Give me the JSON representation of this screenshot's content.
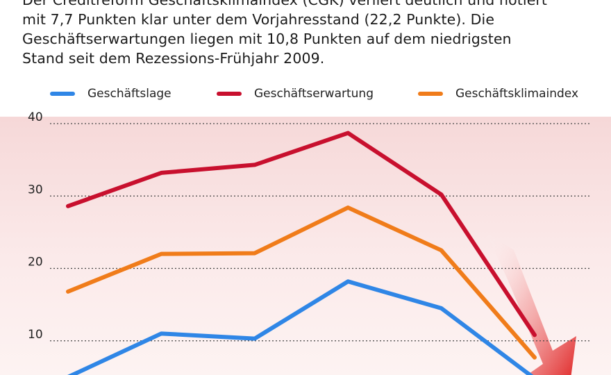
{
  "intro": {
    "lines": [
      "Der Creditreform Geschäftsklimaindex (CGK) verliert deutlich und notiert",
      "mit 7,7 Punkten klar unter dem Vorjahresstand (22,2 Punkte). Die",
      "Geschäftserwartungen liegen mit 10,8 Punkten auf dem niedrigsten",
      "Stand seit dem Rezessions-Frühjahr 2009."
    ]
  },
  "colors": {
    "lage": "#2f86e6",
    "erwartung": "#c8102e",
    "klima": "#f07c1a",
    "grid": "#444444",
    "arrow": "#e03030"
  },
  "chart_data": {
    "type": "line",
    "title": "",
    "xlabel": "",
    "ylabel": "",
    "ylim": [
      0,
      40
    ],
    "yticks": [
      "10",
      "20",
      "30",
      "40"
    ],
    "x": [
      1,
      2,
      3,
      4,
      5,
      6
    ],
    "grid": true,
    "legend_position": "top",
    "series": [
      {
        "name": "Geschäftslage",
        "color_key": "lage",
        "values": [
          5.0,
          11.0,
          10.3,
          18.2,
          14.5,
          4.8
        ]
      },
      {
        "name": "Geschäftserwartung",
        "color_key": "erwartung",
        "values": [
          28.6,
          33.2,
          34.3,
          38.7,
          30.2,
          10.8
        ]
      },
      {
        "name": "Geschäftsklimaindex",
        "color_key": "klima",
        "values": [
          16.8,
          22.0,
          22.1,
          28.4,
          22.5,
          7.7
        ]
      }
    ]
  }
}
